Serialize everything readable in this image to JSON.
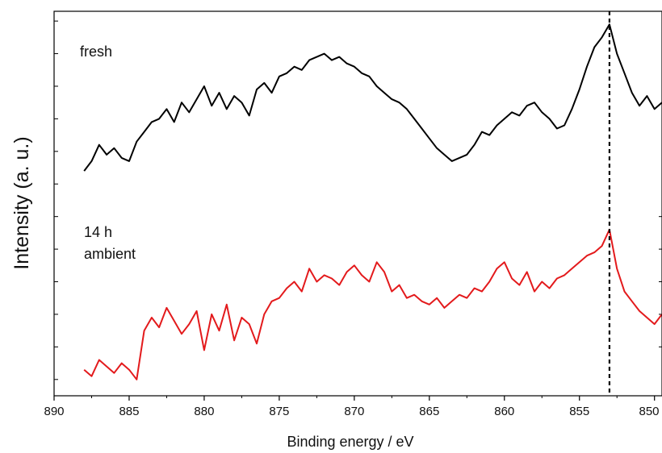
{
  "chart_data": {
    "type": "line",
    "title": "",
    "xlabel": "Binding energy / eV",
    "ylabel": "Intensity (a. u.)",
    "xlim": [
      890,
      849.5
    ],
    "x_reversed": true,
    "xticks": [
      890,
      885,
      880,
      875,
      870,
      865,
      860,
      855,
      850
    ],
    "y_tick_labels_shown": false,
    "grid": false,
    "reference_line": {
      "x": 853.0,
      "style": "dashed",
      "color": "#000000"
    },
    "annotations": [
      {
        "text": "fresh"
      },
      {
        "text": "14 h"
      },
      {
        "text": "ambient"
      }
    ],
    "series": [
      {
        "color": "#000000",
        "x": [
          888.0,
          887.5,
          887.0,
          886.5,
          886.0,
          885.5,
          885.0,
          884.5,
          884.0,
          883.5,
          883.0,
          882.5,
          882.0,
          881.5,
          881.0,
          880.5,
          880.0,
          879.5,
          879.0,
          878.5,
          878.0,
          877.5,
          877.0,
          876.5,
          876.0,
          875.5,
          875.0,
          874.5,
          874.0,
          873.5,
          873.0,
          872.5,
          872.0,
          871.5,
          871.0,
          870.5,
          870.0,
          869.5,
          869.0,
          868.5,
          868.0,
          867.5,
          867.0,
          866.5,
          866.0,
          865.5,
          865.0,
          864.5,
          864.0,
          863.5,
          863.0,
          862.5,
          862.0,
          861.5,
          861.0,
          860.5,
          860.0,
          859.5,
          859.0,
          858.5,
          858.0,
          857.5,
          857.0,
          856.5,
          856.0,
          855.5,
          855.0,
          854.5,
          854.0,
          853.5,
          853.0,
          852.5,
          852.0,
          851.5,
          851.0,
          850.5,
          850.0,
          849.5
        ],
        "values": [
          0.4,
          0.7,
          1.2,
          0.9,
          1.1,
          0.8,
          0.7,
          1.3,
          1.6,
          1.9,
          2.0,
          2.3,
          1.9,
          2.5,
          2.2,
          2.6,
          3.0,
          2.4,
          2.8,
          2.3,
          2.7,
          2.5,
          2.1,
          2.9,
          3.1,
          2.8,
          3.3,
          3.4,
          3.6,
          3.5,
          3.8,
          3.9,
          4.0,
          3.8,
          3.9,
          3.7,
          3.6,
          3.4,
          3.3,
          3.0,
          2.8,
          2.6,
          2.5,
          2.3,
          2.0,
          1.7,
          1.4,
          1.1,
          0.9,
          0.7,
          0.8,
          0.9,
          1.2,
          1.6,
          1.5,
          1.8,
          2.0,
          2.2,
          2.1,
          2.4,
          2.5,
          2.2,
          2.0,
          1.7,
          1.8,
          2.3,
          2.9,
          3.6,
          4.2,
          4.5,
          4.9,
          4.0,
          3.4,
          2.8,
          2.4,
          2.7,
          2.3,
          2.5
        ]
      },
      {
        "color": "#e31a1c",
        "x": [
          888.0,
          887.5,
          887.0,
          886.5,
          886.0,
          885.5,
          885.0,
          884.5,
          884.0,
          883.5,
          883.0,
          882.5,
          882.0,
          881.5,
          881.0,
          880.5,
          880.0,
          879.5,
          879.0,
          878.5,
          878.0,
          877.5,
          877.0,
          876.5,
          876.0,
          875.5,
          875.0,
          874.5,
          874.0,
          873.5,
          873.0,
          872.5,
          872.0,
          871.5,
          871.0,
          870.5,
          870.0,
          869.5,
          869.0,
          868.5,
          868.0,
          867.5,
          867.0,
          866.5,
          866.0,
          865.5,
          865.0,
          864.5,
          864.0,
          863.5,
          863.0,
          862.5,
          862.0,
          861.5,
          861.0,
          860.5,
          860.0,
          859.5,
          859.0,
          858.5,
          858.0,
          857.5,
          857.0,
          856.5,
          856.0,
          855.5,
          855.0,
          854.5,
          854.0,
          853.5,
          853.0,
          852.5,
          852.0,
          851.5,
          851.0,
          850.5,
          850.0,
          849.5
        ],
        "values": [
          -5.7,
          -5.9,
          -5.4,
          -5.6,
          -5.8,
          -5.5,
          -5.7,
          -6.0,
          -4.5,
          -4.1,
          -4.4,
          -3.8,
          -4.2,
          -4.6,
          -4.3,
          -3.9,
          -5.1,
          -4.0,
          -4.5,
          -3.7,
          -4.8,
          -4.1,
          -4.3,
          -4.9,
          -4.0,
          -3.6,
          -3.5,
          -3.2,
          -3.0,
          -3.3,
          -2.6,
          -3.0,
          -2.8,
          -2.9,
          -3.1,
          -2.7,
          -2.5,
          -2.8,
          -3.0,
          -2.4,
          -2.7,
          -3.3,
          -3.1,
          -3.5,
          -3.4,
          -3.6,
          -3.7,
          -3.5,
          -3.8,
          -3.6,
          -3.4,
          -3.5,
          -3.2,
          -3.3,
          -3.0,
          -2.6,
          -2.4,
          -2.9,
          -3.1,
          -2.7,
          -3.3,
          -3.0,
          -3.2,
          -2.9,
          -2.8,
          -2.6,
          -2.4,
          -2.2,
          -2.1,
          -1.9,
          -1.4,
          -2.6,
          -3.3,
          -3.6,
          -3.9,
          -4.1,
          -4.3,
          -4.0
        ]
      }
    ]
  }
}
